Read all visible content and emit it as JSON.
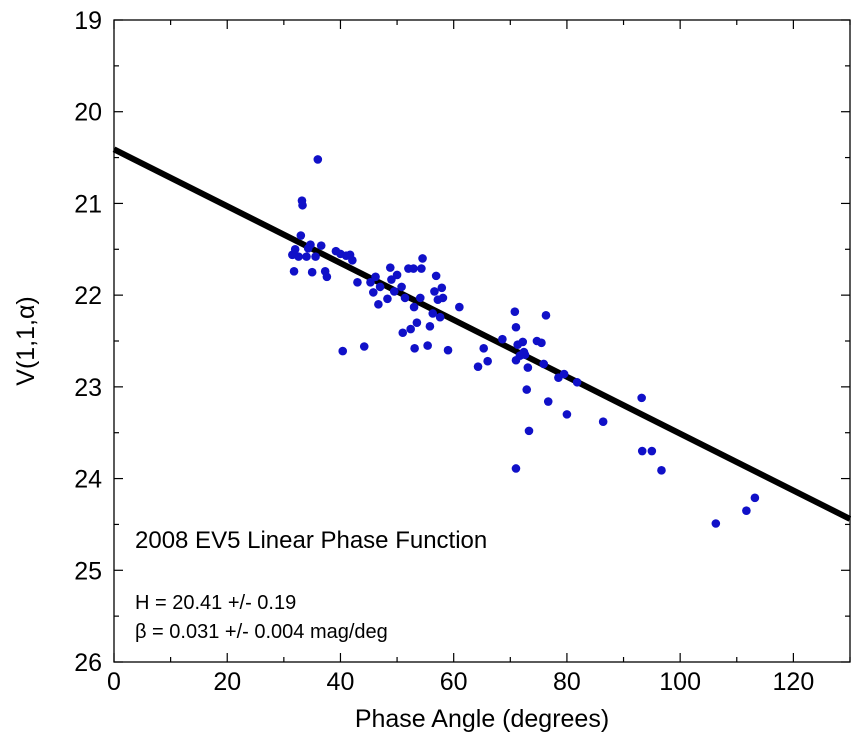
{
  "chart_data": {
    "type": "scatter",
    "title": "",
    "xlabel": "Phase Angle (degrees)",
    "ylabel": "V(1,1,α)",
    "xlim": [
      0,
      130
    ],
    "ylim": [
      19,
      26
    ],
    "y_inverted": true,
    "x_ticks": [
      0,
      20,
      40,
      60,
      80,
      100,
      120
    ],
    "x_tick_labels": [
      "0",
      "20",
      "40",
      "60",
      "80",
      "100",
      "120"
    ],
    "y_ticks": [
      19,
      20,
      21,
      22,
      23,
      24,
      25,
      26
    ],
    "y_tick_labels": [
      "19",
      "20",
      "21",
      "22",
      "23",
      "24",
      "25",
      "26"
    ],
    "grid": false,
    "annotations": {
      "name": "2008 EV5 Linear Phase Function",
      "h_fit": "H = 20.41 +/- 0.19",
      "beta_fit": "β = 0.031 +/- 0.004 mag/deg"
    },
    "fit_line": {
      "x": [
        0,
        130
      ],
      "y": [
        20.41,
        24.44
      ]
    },
    "colors": {
      "points": "#1010c8",
      "fit_line": "#000000"
    },
    "points": [
      [
        31.5,
        21.56
      ],
      [
        31.8,
        21.74
      ],
      [
        32.0,
        21.5
      ],
      [
        32.6,
        21.58
      ],
      [
        33.0,
        21.35
      ],
      [
        33.2,
        20.97
      ],
      [
        33.3,
        21.02
      ],
      [
        34.0,
        21.58
      ],
      [
        34.3,
        21.49
      ],
      [
        34.7,
        21.45
      ],
      [
        35.0,
        21.75
      ],
      [
        35.6,
        21.58
      ],
      [
        36.0,
        20.52
      ],
      [
        36.6,
        21.46
      ],
      [
        37.3,
        21.74
      ],
      [
        37.6,
        21.8
      ],
      [
        39.2,
        21.52
      ],
      [
        40.0,
        21.55
      ],
      [
        40.4,
        22.61
      ],
      [
        41.0,
        21.57
      ],
      [
        41.7,
        21.56
      ],
      [
        42.1,
        21.62
      ],
      [
        43.0,
        21.86
      ],
      [
        44.2,
        22.56
      ],
      [
        45.3,
        21.86
      ],
      [
        45.8,
        21.97
      ],
      [
        46.2,
        21.8
      ],
      [
        46.7,
        22.1
      ],
      [
        47.0,
        21.91
      ],
      [
        48.3,
        22.04
      ],
      [
        48.8,
        21.7
      ],
      [
        49.0,
        21.83
      ],
      [
        49.5,
        21.96
      ],
      [
        50.0,
        21.78
      ],
      [
        50.8,
        21.91
      ],
      [
        51.0,
        22.41
      ],
      [
        51.4,
        22.03
      ],
      [
        52.0,
        21.71
      ],
      [
        52.4,
        22.37
      ],
      [
        52.9,
        21.71
      ],
      [
        53.0,
        22.13
      ],
      [
        53.1,
        22.58
      ],
      [
        53.5,
        22.3
      ],
      [
        54.1,
        22.03
      ],
      [
        54.3,
        21.71
      ],
      [
        54.5,
        21.6
      ],
      [
        55.4,
        22.55
      ],
      [
        55.8,
        22.34
      ],
      [
        56.3,
        22.2
      ],
      [
        56.6,
        21.96
      ],
      [
        56.9,
        21.79
      ],
      [
        57.2,
        22.05
      ],
      [
        57.6,
        22.24
      ],
      [
        57.9,
        21.92
      ],
      [
        58.1,
        22.03
      ],
      [
        59.0,
        22.6
      ],
      [
        61.0,
        22.13
      ],
      [
        64.3,
        22.78
      ],
      [
        65.3,
        22.58
      ],
      [
        66.0,
        22.72
      ],
      [
        68.6,
        22.48
      ],
      [
        70.8,
        22.18
      ],
      [
        71.0,
        22.35
      ],
      [
        71.0,
        22.71
      ],
      [
        71.0,
        23.89
      ],
      [
        71.3,
        22.54
      ],
      [
        71.7,
        22.66
      ],
      [
        72.2,
        22.51
      ],
      [
        72.4,
        22.62
      ],
      [
        72.6,
        22.65
      ],
      [
        72.9,
        23.03
      ],
      [
        73.1,
        22.79
      ],
      [
        73.3,
        23.48
      ],
      [
        74.7,
        22.5
      ],
      [
        75.5,
        22.52
      ],
      [
        75.9,
        22.75
      ],
      [
        76.3,
        22.22
      ],
      [
        76.7,
        23.16
      ],
      [
        78.5,
        22.9
      ],
      [
        79.5,
        22.86
      ],
      [
        80.0,
        23.3
      ],
      [
        81.8,
        22.95
      ],
      [
        86.4,
        23.38
      ],
      [
        93.2,
        23.12
      ],
      [
        93.3,
        23.7
      ],
      [
        95.0,
        23.7
      ],
      [
        96.7,
        23.91
      ],
      [
        106.3,
        24.49
      ],
      [
        111.7,
        24.35
      ],
      [
        113.2,
        24.21
      ]
    ]
  }
}
